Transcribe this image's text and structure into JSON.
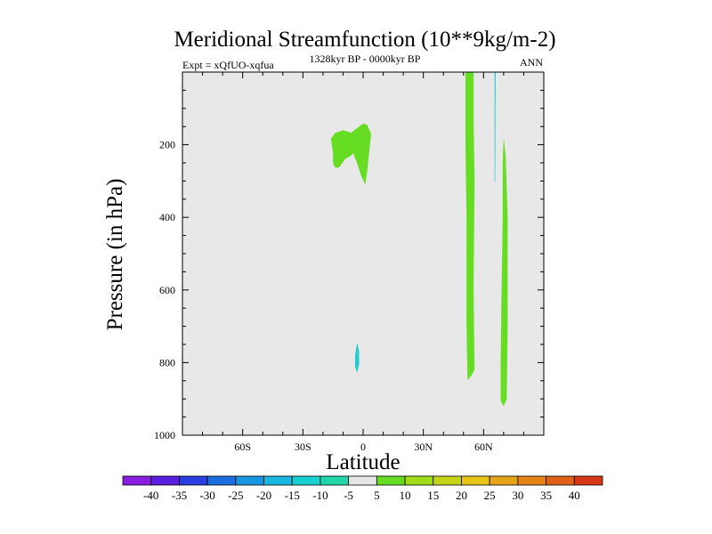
{
  "chart_data": {
    "type": "heatmap",
    "title": "Meridional Streamfunction (10**9kg/m-2)",
    "subtitle_left": "Expt = xQfUO-xqfua",
    "subtitle_center": "1328kyr BP - 0000kyr BP",
    "subtitle_right": "ANN",
    "xlabel": "Latitude",
    "ylabel": "Pressure (in hPa)",
    "xlim": [
      -90,
      90
    ],
    "ylim": [
      1000,
      0
    ],
    "x_ticks": [
      {
        "value": -60,
        "label": "60S"
      },
      {
        "value": -30,
        "label": "30S"
      },
      {
        "value": 0,
        "label": "0"
      },
      {
        "value": 30,
        "label": "30N"
      },
      {
        "value": 60,
        "label": "60N"
      }
    ],
    "y_ticks": [
      {
        "value": 200,
        "label": "200"
      },
      {
        "value": 400,
        "label": "400"
      },
      {
        "value": 600,
        "label": "600"
      },
      {
        "value": 800,
        "label": "800"
      },
      {
        "value": 1000,
        "label": "1000"
      }
    ],
    "plot_background": "#e8e8e8",
    "regions": [
      {
        "name": "tropical-upper-positive-a",
        "color": "#66dd22",
        "points": [
          [
            -14,
            263
          ],
          [
            -12,
            263
          ],
          [
            -9,
            240
          ],
          [
            -6,
            230
          ],
          [
            -3,
            210
          ],
          [
            -4,
            180
          ],
          [
            -6,
            167
          ],
          [
            -10,
            160
          ],
          [
            -14,
            168
          ],
          [
            -16,
            183
          ],
          [
            -15,
            225
          ],
          [
            -15,
            250
          ]
        ]
      },
      {
        "name": "tropical-upper-positive-b",
        "color": "#66dd22",
        "points": [
          [
            -6,
            167
          ],
          [
            -2,
            150
          ],
          [
            0,
            142
          ],
          [
            2,
            145
          ],
          [
            4,
            170
          ],
          [
            3,
            220
          ],
          [
            2,
            275
          ],
          [
            1,
            310
          ],
          [
            -1,
            285
          ],
          [
            -3,
            250
          ],
          [
            -6,
            210
          ]
        ]
      },
      {
        "name": "equator-lower-negative",
        "color": "#22cccc",
        "points": [
          [
            -4,
            780
          ],
          [
            -3,
            745
          ],
          [
            -2,
            770
          ],
          [
            -2,
            805
          ],
          [
            -3,
            828
          ],
          [
            -4,
            812
          ]
        ]
      },
      {
        "name": "north-60-column-positive",
        "color": "#66dd22",
        "points": [
          [
            51,
            0
          ],
          [
            55,
            0
          ],
          [
            55,
            120
          ],
          [
            55.5,
            300
          ],
          [
            55,
            600
          ],
          [
            55.5,
            820
          ],
          [
            54,
            835
          ],
          [
            52,
            848
          ],
          [
            51.5,
            700
          ],
          [
            51.5,
            400
          ],
          [
            51,
            200
          ]
        ]
      },
      {
        "name": "north-65-thin-negative",
        "color": "#22cccc",
        "points": [
          [
            65.5,
            0
          ],
          [
            66,
            0
          ],
          [
            65.8,
            300
          ],
          [
            65.5,
            305
          ]
        ]
      },
      {
        "name": "north-70-column-positive",
        "color": "#66dd22",
        "points": [
          [
            70,
            180
          ],
          [
            71,
            230
          ],
          [
            72,
            400
          ],
          [
            72,
            700
          ],
          [
            71.5,
            900
          ],
          [
            70,
            920
          ],
          [
            68.5,
            905
          ],
          [
            68.5,
            800
          ],
          [
            69,
            600
          ],
          [
            69.5,
            400
          ],
          [
            69.5,
            250
          ]
        ]
      }
    ],
    "colorbar": {
      "labels": [
        "-40",
        "-35",
        "-30",
        "-25",
        "-20",
        "-15",
        "-10",
        "-5",
        "5",
        "10",
        "15",
        "20",
        "25",
        "30",
        "35",
        "40"
      ],
      "colors": [
        "#8a1ee0",
        "#5a1ee0",
        "#2a3ee0",
        "#1a6ee0",
        "#1896e0",
        "#18b6e0",
        "#18d0d0",
        "#22d4aa",
        "#e6e6e6",
        "#66dd22",
        "#a0dd18",
        "#c6d418",
        "#e6c418",
        "#e6a418",
        "#e68418",
        "#e06018",
        "#d83818"
      ]
    }
  }
}
